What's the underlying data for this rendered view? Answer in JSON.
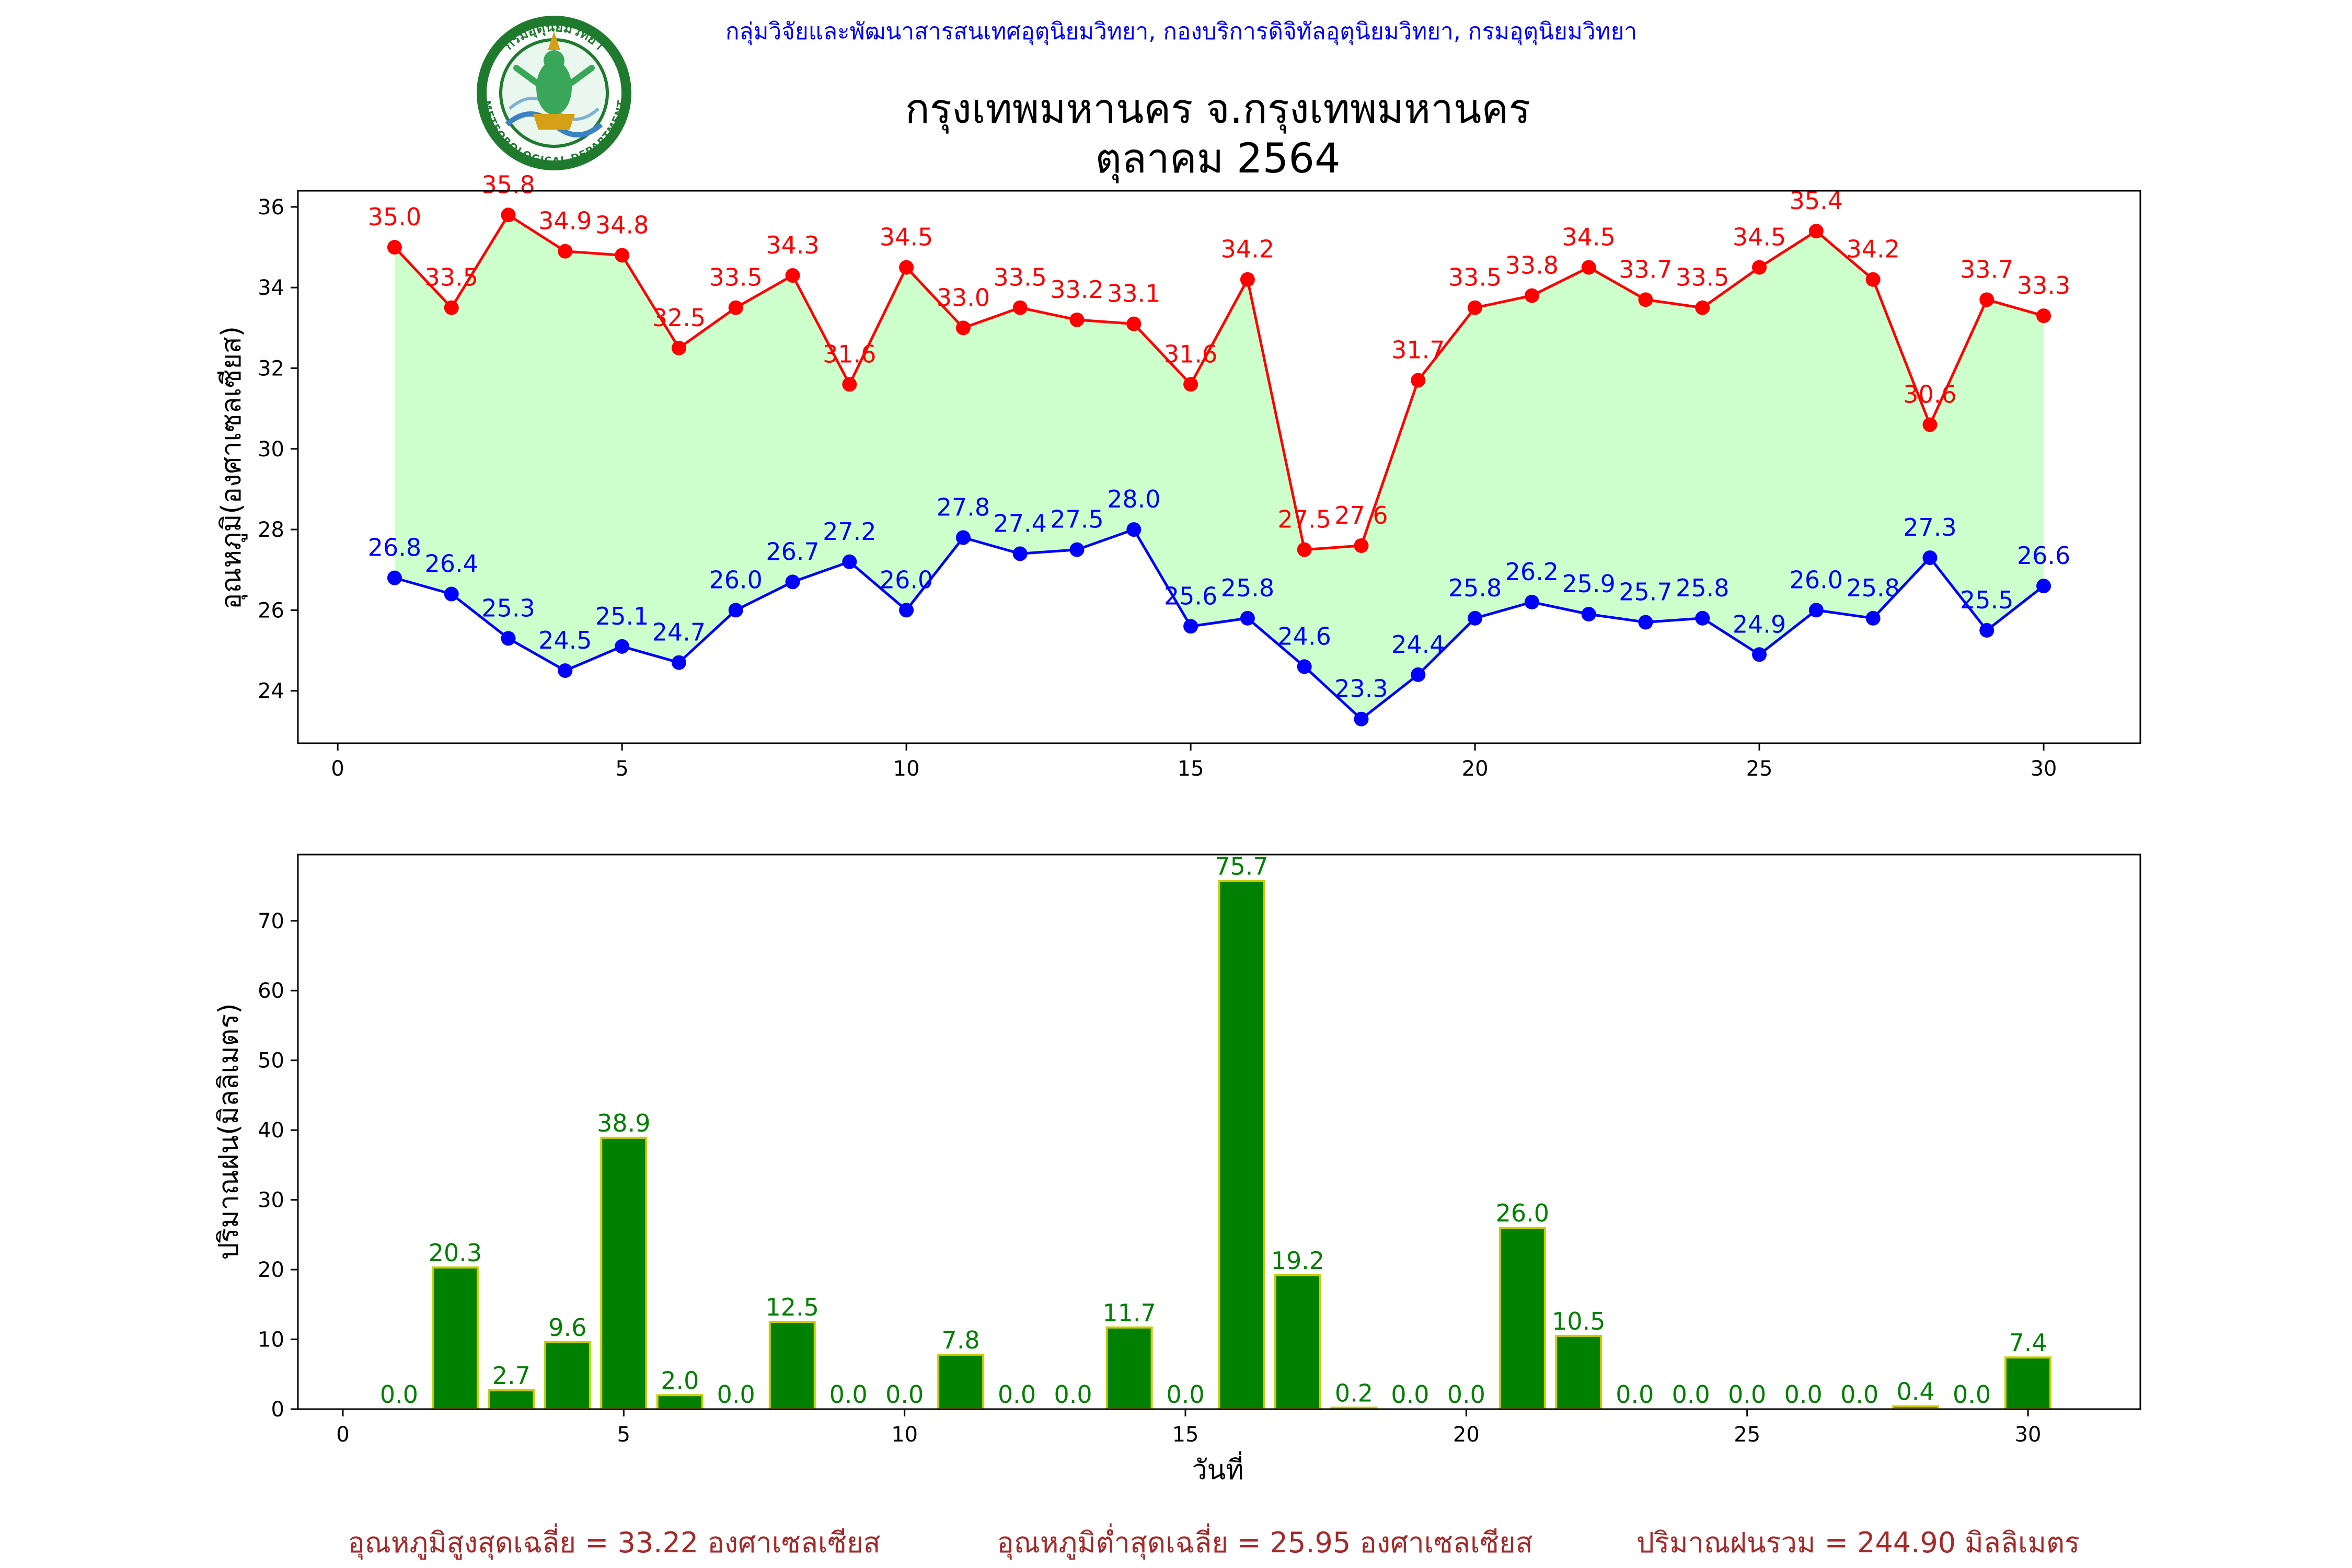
{
  "header": {
    "source": "กลุ่มวิจัยและพัฒนาสารสนเทศอุตุนิยมวิทยา, กองบริการดิจิทัลอุตุนิยมวิทยา, กรมอุตุนิยมวิทยา",
    "title_line1": "กรุงเทพมหานคร จ.กรุงเทพมหานคร",
    "title_line2": "ตุลาคม 2564",
    "logo_top_text": "กรมอุตุนิยมวิทยา",
    "logo_bottom_text": "METEOROLOGICAL DEPARTMENT"
  },
  "colors": {
    "max": "#ff0000",
    "min": "#0000ff",
    "fill": "#ccffcc",
    "rain": "#008000",
    "rain_edge": "#cccc00",
    "footer": "#a52a2a",
    "header": "#0000ff"
  },
  "chart_data": [
    {
      "type": "line",
      "title": "",
      "xlabel": "",
      "ylabel": "อุณหภูมิ(องศาเซลเซียส)",
      "xlim": [
        -0.7,
        31.7
      ],
      "ylim": [
        22.7,
        36.4
      ],
      "xticks": [
        0,
        5,
        10,
        15,
        20,
        25,
        30
      ],
      "yticks": [
        24,
        26,
        28,
        30,
        32,
        34,
        36
      ],
      "x": [
        1,
        2,
        3,
        4,
        5,
        6,
        7,
        8,
        9,
        10,
        11,
        12,
        13,
        14,
        15,
        16,
        17,
        18,
        19,
        20,
        21,
        22,
        23,
        24,
        25,
        26,
        27,
        28,
        29,
        30
      ],
      "fill_between": true,
      "series": [
        {
          "key": "max",
          "values": [
            35.0,
            33.5,
            35.8,
            34.9,
            34.8,
            32.5,
            33.5,
            34.3,
            31.6,
            34.5,
            33.0,
            33.5,
            33.2,
            33.1,
            31.6,
            34.2,
            27.5,
            27.6,
            31.7,
            33.5,
            33.8,
            34.5,
            33.7,
            33.5,
            34.5,
            35.4,
            34.2,
            30.6,
            33.7,
            33.3
          ]
        },
        {
          "key": "min",
          "values": [
            26.8,
            26.4,
            25.3,
            24.5,
            25.1,
            24.7,
            26.0,
            26.7,
            27.2,
            26.0,
            27.8,
            27.4,
            27.5,
            28.0,
            25.6,
            25.8,
            24.6,
            23.3,
            24.4,
            25.8,
            26.2,
            25.9,
            25.7,
            25.8,
            24.9,
            26.0,
            25.8,
            27.3,
            25.5,
            26.6
          ]
        }
      ]
    },
    {
      "type": "bar",
      "title": "",
      "xlabel": "วันที่",
      "ylabel": "ปริมาณฝน(มิลลิเมตร)",
      "xlim": [
        -0.8,
        32.0
      ],
      "ylim": [
        0,
        79.5
      ],
      "xticks": [
        0,
        5,
        10,
        15,
        20,
        25,
        30
      ],
      "yticks": [
        0,
        10,
        20,
        30,
        40,
        50,
        60,
        70
      ],
      "x": [
        1,
        2,
        3,
        4,
        5,
        6,
        7,
        8,
        9,
        10,
        11,
        12,
        13,
        14,
        15,
        16,
        17,
        18,
        19,
        20,
        21,
        22,
        23,
        24,
        25,
        26,
        27,
        28,
        29,
        30
      ],
      "values": [
        0.0,
        20.3,
        2.7,
        9.6,
        38.9,
        2.0,
        0.0,
        12.5,
        0.0,
        0.0,
        7.8,
        0.0,
        0.0,
        11.7,
        0.0,
        75.7,
        19.2,
        0.2,
        0.0,
        0.0,
        26.0,
        10.5,
        0.0,
        0.0,
        0.0,
        0.0,
        0.0,
        0.4,
        0.0,
        7.4
      ]
    }
  ],
  "footer": {
    "avg_max": "อุณหภูมิสูงสุดเฉลี่ย = 33.22 องศาเซลเซียส",
    "avg_min": "อุณหภูมิต่ำสุดเฉลี่ย = 25.95 องศาเซลเซียส",
    "total_rain": "ปริมาณฝนรวม = 244.90 มิลลิเมตร"
  }
}
